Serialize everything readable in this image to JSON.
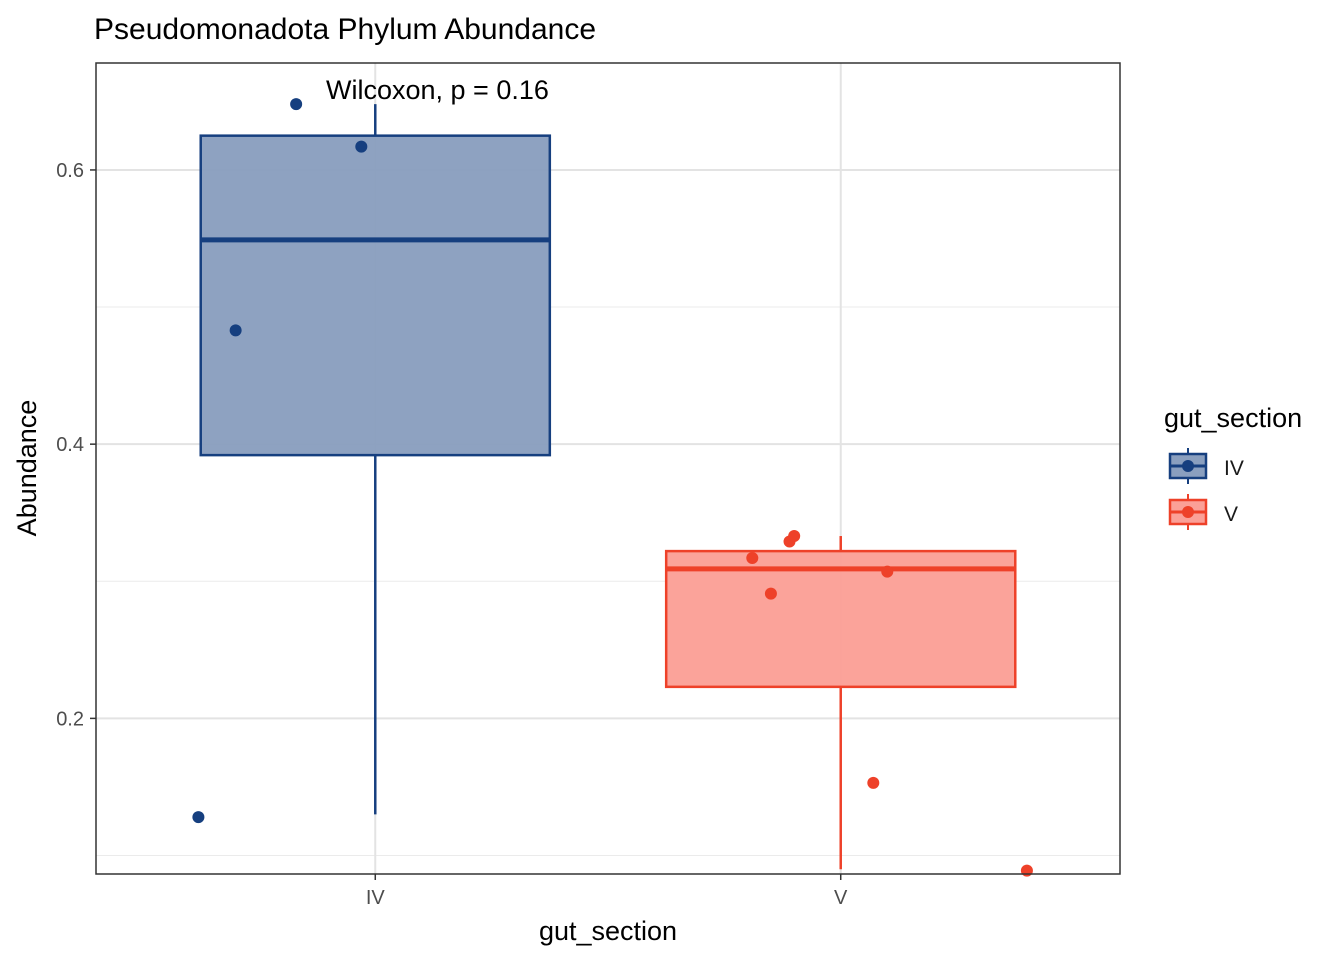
{
  "chart_data": {
    "type": "boxplot",
    "title": "Pseudomonadota Phylum Abundance",
    "xlabel": "gut_section",
    "ylabel": "Abundance",
    "categories": [
      "IV",
      "V"
    ],
    "ylim": [
      0.0865,
      0.678
    ],
    "yticks": [
      0.2,
      0.4,
      0.6
    ],
    "ytick_labels": [
      "0.2",
      "0.4",
      "0.6"
    ],
    "grid": true,
    "annotation": "Wilcoxon, p = 0.16",
    "legend": {
      "title": "gut_section",
      "position": "right",
      "entries": [
        "IV",
        "V"
      ]
    },
    "boxes": [
      {
        "name": "IV",
        "color": "#163f7f",
        "fill": "#8a9fbf",
        "whisker_low": 0.13,
        "q1": 0.392,
        "median": 0.549,
        "q3": 0.625,
        "whisker_high": 0.648,
        "points": [
          {
            "x": "IV",
            "jitter": -0.38,
            "y": 0.128
          },
          {
            "x": "IV",
            "jitter": -0.3,
            "y": 0.483
          },
          {
            "x": "IV",
            "jitter": -0.17,
            "y": 0.648
          },
          {
            "x": "IV",
            "jitter": -0.03,
            "y": 0.617
          }
        ]
      },
      {
        "name": "V",
        "color": "#ee4129",
        "fill": "#fba097",
        "whisker_low": 0.09,
        "q1": 0.223,
        "median": 0.309,
        "q3": 0.322,
        "whisker_high": 0.333,
        "points": [
          {
            "x": "V",
            "jitter": -0.19,
            "y": 0.317
          },
          {
            "x": "V",
            "jitter": -0.15,
            "y": 0.291
          },
          {
            "x": "V",
            "jitter": -0.11,
            "y": 0.329
          },
          {
            "x": "V",
            "jitter": -0.1,
            "y": 0.333
          },
          {
            "x": "V",
            "jitter": 0.07,
            "y": 0.153
          },
          {
            "x": "V",
            "jitter": 0.1,
            "y": 0.307
          },
          {
            "x": "V",
            "jitter": 0.4,
            "y": 0.089
          }
        ]
      }
    ]
  }
}
